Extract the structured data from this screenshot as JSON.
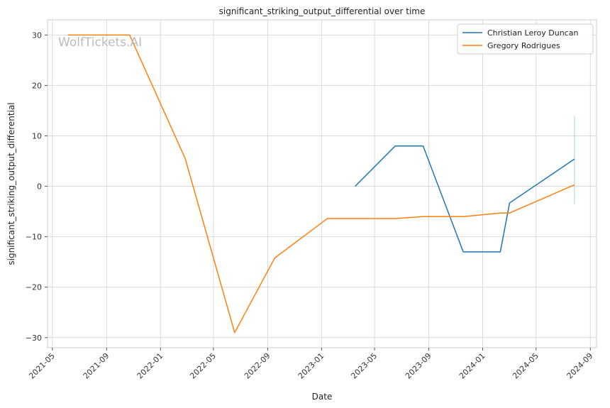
{
  "chart_data": {
    "type": "line",
    "title": "significant_striking_output_differential over time",
    "xlabel": "Date",
    "ylabel": "significant_striking_output_differential",
    "watermark": "WolfTickets.AI",
    "xlim": [
      "2021-04-20",
      "2024-09-15"
    ],
    "ylim": [
      -32,
      33
    ],
    "x_ticks": [
      "2021-05",
      "2021-09",
      "2022-01",
      "2022-05",
      "2022-09",
      "2023-01",
      "2023-05",
      "2023-09",
      "2024-01",
      "2024-05",
      "2024-09"
    ],
    "x_tick_dates": [
      "2021-05-01",
      "2021-09-01",
      "2022-01-01",
      "2022-05-01",
      "2022-09-01",
      "2023-01-01",
      "2023-05-01",
      "2023-09-01",
      "2024-01-01",
      "2024-05-01",
      "2024-09-01"
    ],
    "y_ticks": [
      30,
      20,
      10,
      0,
      -10,
      -20,
      -30
    ],
    "y_tick_labels": [
      "30",
      "20",
      "10",
      "0",
      "−10",
      "−20",
      "−30"
    ],
    "grid": true,
    "legend_position": "top-right",
    "series": [
      {
        "name": "Christian Leroy Duncan",
        "color": "#1f77b4",
        "x": [
          "2023-03-18",
          "2023-06-17",
          "2023-08-19",
          "2023-11-18",
          "2024-02-10",
          "2024-03-02",
          "2024-07-27"
        ],
        "y": [
          0,
          8,
          8,
          -13,
          -13,
          -3.3,
          5.4
        ]
      },
      {
        "name": "Gregory Rodrigues",
        "color": "#ff7f0e",
        "x": [
          "2021-06-05",
          "2021-10-23",
          "2022-02-26",
          "2022-06-18",
          "2022-09-17",
          "2023-01-14",
          "2023-06-17",
          "2023-08-19",
          "2023-11-18",
          "2024-02-10",
          "2024-03-02",
          "2024-07-27"
        ],
        "y": [
          30,
          30,
          5.5,
          -29,
          -14.2,
          -6.4,
          -6.4,
          -6,
          -6,
          -5.3,
          -5.3,
          0.3
        ]
      }
    ],
    "error_band": {
      "x": "2024-07-27",
      "y_low": -3.5,
      "y_high": 14,
      "color": "#9ecae1"
    }
  }
}
